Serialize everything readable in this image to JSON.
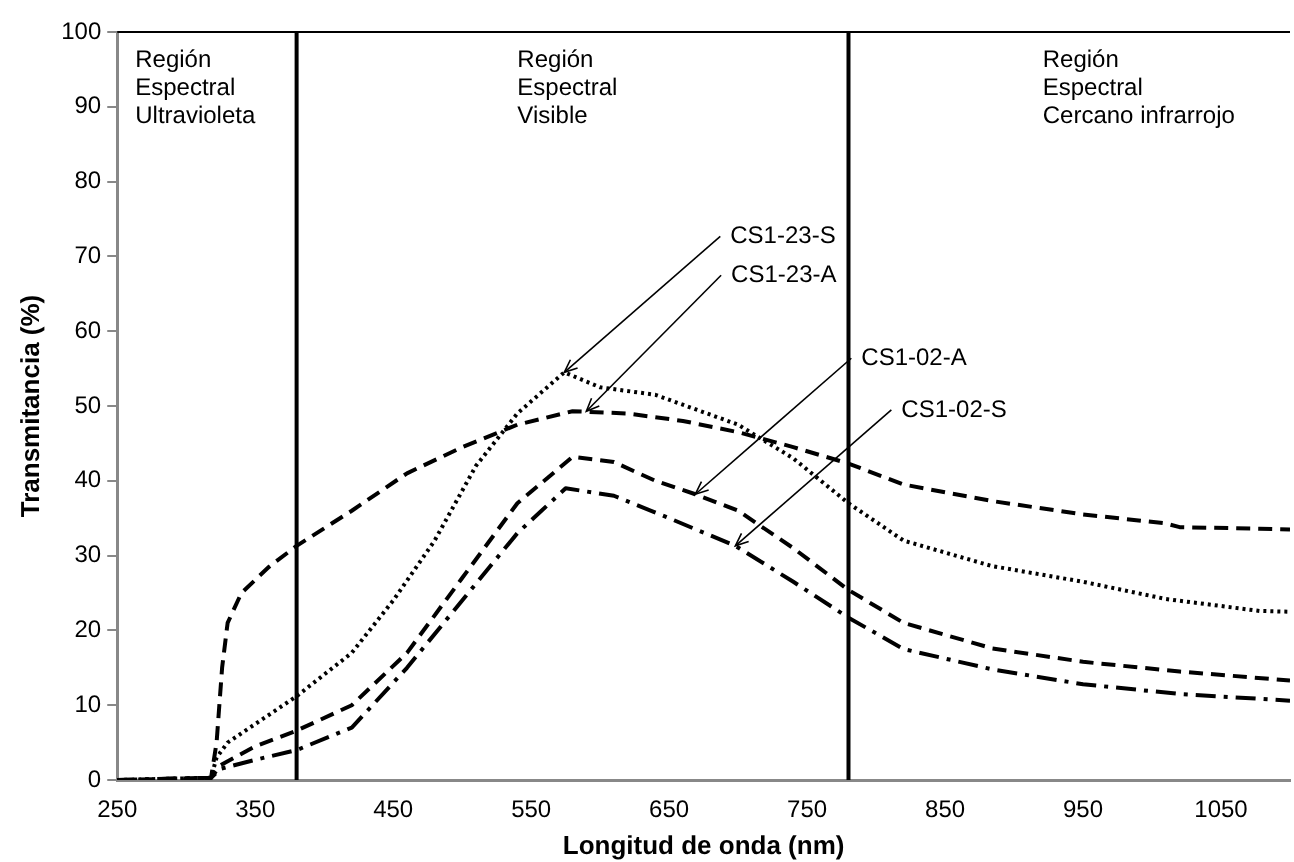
{
  "chart_data": {
    "type": "line",
    "xlabel": "Longitud de onda (nm)",
    "ylabel": "Transmitancia (%)",
    "xlim": [
      250,
      1100
    ],
    "xticks": [
      250,
      350,
      450,
      550,
      650,
      750,
      850,
      950,
      1050
    ],
    "ylim": [
      0,
      100
    ],
    "yticks": [
      0,
      10,
      20,
      30,
      40,
      50,
      60,
      70,
      80,
      90,
      100
    ],
    "grid": false,
    "legend": false,
    "marker": "none",
    "series": [
      {
        "color": "#000000",
        "line_style": "dashed",
        "x": [
          250,
          300,
          318,
          322,
          326,
          330,
          340,
          360,
          380,
          420,
          460,
          500,
          540,
          580,
          620,
          660,
          700,
          740,
          780,
          820,
          884,
          950,
          1010,
          1020,
          1078,
          1100
        ],
        "values": [
          0,
          0,
          0.3,
          5,
          15,
          21,
          25,
          28.5,
          31.3,
          36,
          41,
          44.5,
          47.5,
          49.3,
          49,
          48,
          46.5,
          44.5,
          42.3,
          39.5,
          37.3,
          35.5,
          34.3,
          33.8,
          33.6,
          33.5
        ]
      },
      {
        "color": "#000000",
        "line_style": "dotted",
        "x": [
          250,
          318,
          322,
          330,
          380,
          420,
          450,
          480,
          510,
          540,
          574,
          600,
          640,
          700,
          740,
          780,
          820,
          884,
          950,
          1010,
          1078,
          1100
        ],
        "values": [
          0,
          0.3,
          3,
          5,
          11.2,
          17,
          24,
          32,
          42,
          49,
          54.5,
          52.5,
          51.5,
          47.5,
          43,
          37,
          32,
          28.6,
          26.5,
          24.2,
          22.6,
          22.5
        ]
      },
      {
        "color": "#000000",
        "line_style": "dashed",
        "x": [
          250,
          318,
          325,
          350,
          380,
          420,
          460,
          500,
          540,
          580,
          610,
          640,
          669,
          700,
          740,
          780,
          820,
          884,
          950,
          1020,
          1100
        ],
        "values": [
          0,
          0.3,
          2,
          4.5,
          6.6,
          10,
          17,
          27,
          37,
          43.2,
          42.5,
          40,
          38.2,
          36,
          31,
          25.4,
          21,
          17.6,
          15.8,
          14.5,
          13.3
        ]
      },
      {
        "color": "#000000",
        "line_style": "dashdot",
        "x": [
          250,
          318,
          325,
          350,
          380,
          420,
          460,
          500,
          540,
          575,
          610,
          650,
          698,
          740,
          780,
          820,
          884,
          950,
          1020,
          1100
        ],
        "values": [
          0,
          0.3,
          1.5,
          2.7,
          4,
          7,
          15,
          24,
          33,
          39,
          38,
          35,
          31.3,
          26.5,
          21.7,
          17.5,
          14.8,
          12.8,
          11.5,
          10.6
        ]
      }
    ],
    "ref_lines": [
      {
        "axis": "x",
        "value": 380
      },
      {
        "axis": "x",
        "value": 780
      }
    ],
    "annotations": [
      "Región\nEspectral\nUltravioleta",
      "Región\nEspectral\nVisible",
      "Región\nEspectral\nCercano infrarrojo",
      {
        "text": "CS1-23-S",
        "x": 574,
        "y": 54.5
      },
      {
        "text": "CS1-23-A",
        "x": 590,
        "y": 49.3
      },
      {
        "text": "CS1-02-A",
        "x": 669,
        "y": 38.2
      },
      {
        "text": "CS1-02-S",
        "x": 698,
        "y": 31.3
      }
    ]
  }
}
